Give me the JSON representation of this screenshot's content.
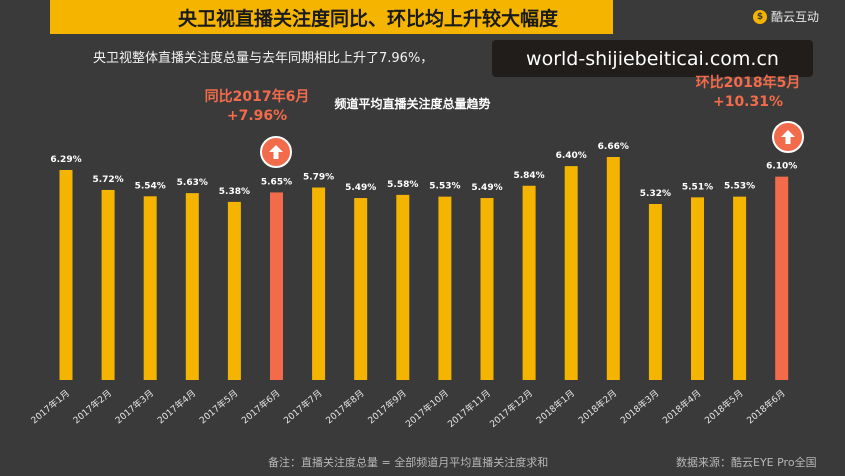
{
  "header": {
    "title": "央卫视直播关注度同比、环比均上升较大幅度",
    "brand_icon": "brand-logo-icon",
    "brand_name": "酷云互动",
    "subtitle": "央卫视整体直播关注度总量与去年同期相比上升了7.96%，",
    "watermark": "world-shijiebeiticai.com.cn"
  },
  "callouts": {
    "left": {
      "line1": "同比2017年6月",
      "line2": "+7.96%"
    },
    "right": {
      "line1": "环比2018年5月",
      "line2": "+10.31%"
    },
    "arrow_icon": "up-arrow-icon"
  },
  "footer": {
    "note": "备注：直播关注度总量 = 全部频道月平均直播关注度求和",
    "source": "数据来源：酷云EYE Pro全国"
  },
  "colors": {
    "background": "#3a3a3a",
    "bar": "#f4b400",
    "highlight_bar": "#f26b4b",
    "accent": "#f4b400"
  },
  "chart_data": {
    "type": "bar",
    "title": "频道平均直播关注度总量趋势",
    "categories": [
      "2017年1月",
      "2017年2月",
      "2017年3月",
      "2017年4月",
      "2017年5月",
      "2017年6月",
      "2017年7月",
      "2017年8月",
      "2017年9月",
      "2017年10月",
      "2017年11月",
      "2017年12月",
      "2018年1月",
      "2018年2月",
      "2018年3月",
      "2018年4月",
      "2018年5月",
      "2018年6月"
    ],
    "values": [
      6.29,
      5.72,
      5.54,
      5.63,
      5.38,
      5.65,
      5.79,
      5.49,
      5.58,
      5.53,
      5.49,
      5.84,
      6.4,
      6.66,
      5.32,
      5.51,
      5.53,
      6.1
    ],
    "value_labels": [
      "6.29%",
      "5.72%",
      "5.54%",
      "5.63%",
      "5.38%",
      "5.65%",
      "5.79%",
      "5.49%",
      "5.58%",
      "5.53%",
      "5.49%",
      "5.84%",
      "6.40%",
      "6.66%",
      "5.32%",
      "5.51%",
      "5.53%",
      "6.10%"
    ],
    "highlighted": [
      "2017年6月",
      "2018年6月"
    ],
    "unit": "%",
    "xlabel": "",
    "ylabel": "",
    "grid": false,
    "legend": "none"
  }
}
